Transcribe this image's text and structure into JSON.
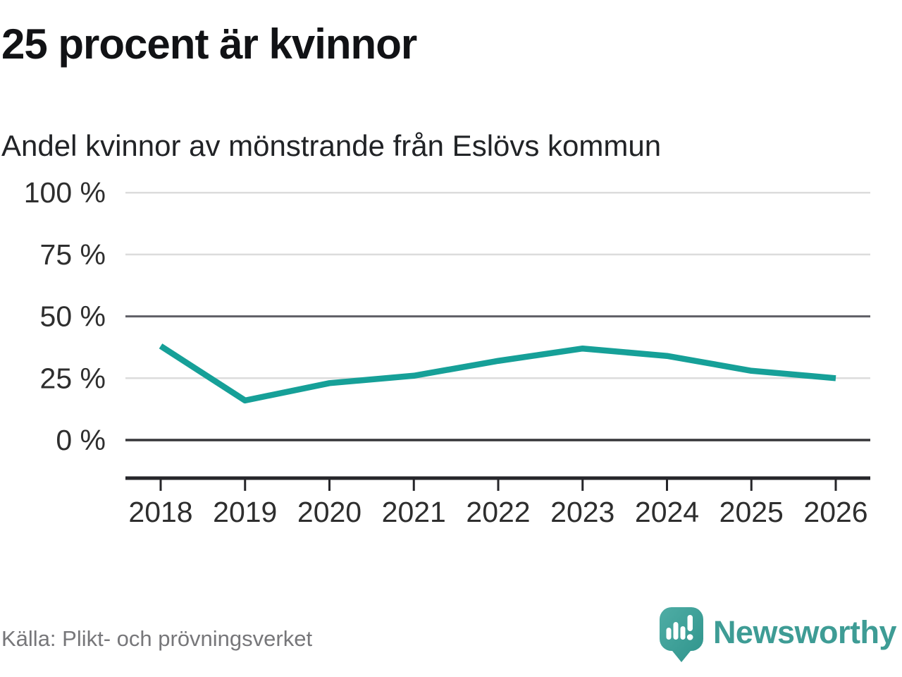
{
  "header": {
    "title": "25 procent är kvinnor",
    "subtitle": "Andel kvinnor av mönstrande från Eslövs kommun"
  },
  "chart_data": {
    "type": "line",
    "x": [
      2018,
      2019,
      2020,
      2021,
      2022,
      2023,
      2024,
      2025,
      2026
    ],
    "values": [
      38,
      16,
      23,
      26,
      32,
      37,
      34,
      28,
      25
    ],
    "unit": "%",
    "series_name": "Andel kvinnor av mönstrande",
    "yticks": [
      0,
      25,
      50,
      75,
      100
    ],
    "ytick_labels": [
      "0 %",
      "25 %",
      "50 %",
      "75 %",
      "100 %"
    ],
    "ylim": [
      -15,
      100
    ],
    "grid": "horizontal",
    "legend": "none",
    "title": "25 procent är kvinnor",
    "subtitle": "Andel kvinnor av mönstrande från Eslövs kommun"
  },
  "footer": {
    "source": "Källa: Plikt- och prövningsverket",
    "brand": "Newsworthy"
  },
  "colors": {
    "line": "#16a098",
    "brand_teal": "#3e9c95",
    "grid_light": "#dcdcdc",
    "grid_mid": "#5f5f66",
    "grid_zero": "#363639",
    "axis": "#26262a",
    "tick_label": "#2e2e2e"
  }
}
